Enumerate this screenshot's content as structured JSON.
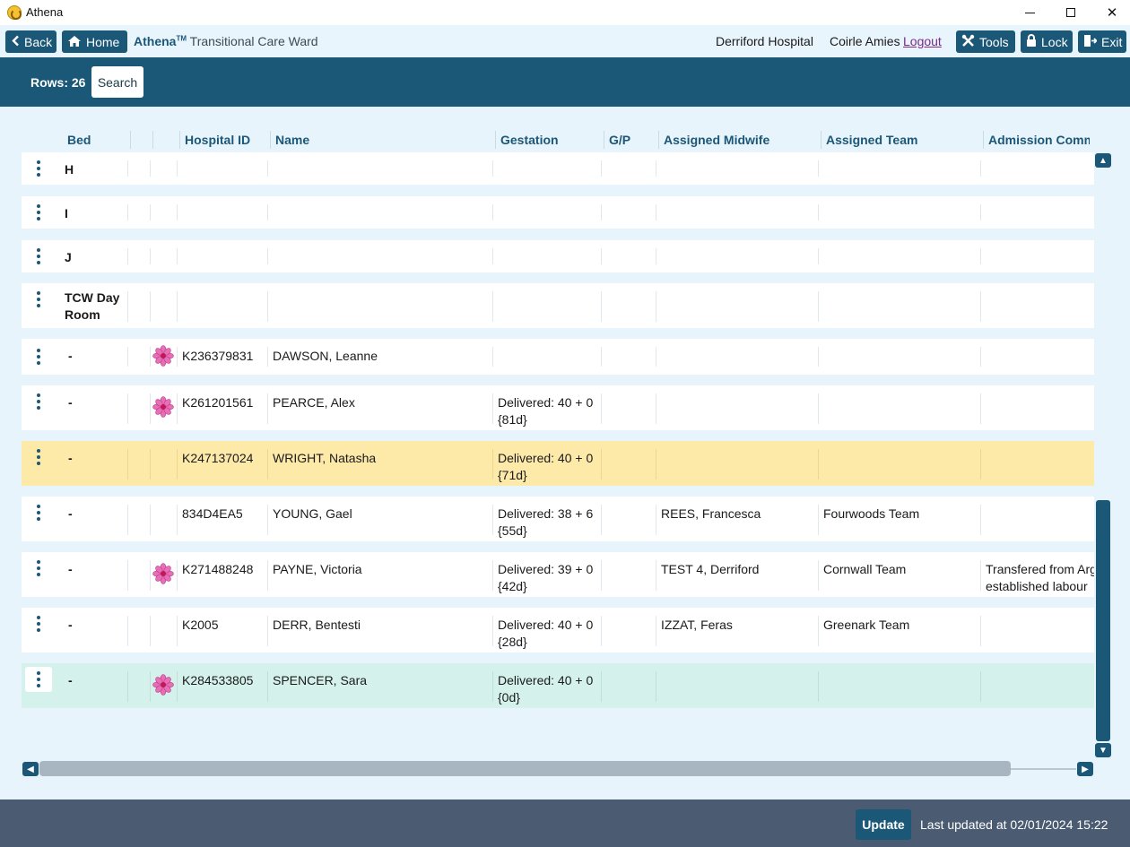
{
  "window": {
    "title": "Athena",
    "minimize": "—",
    "maximize": "☐",
    "close": "✕"
  },
  "header": {
    "back_label": "Back",
    "home_label": "Home",
    "brand_name": "Athena",
    "brand_tm": "TM",
    "ward": "Transitional Care Ward",
    "hospital": "Derriford Hospital",
    "user": "Coirle Amies",
    "logout_label": "Logout",
    "tools_label": "Tools",
    "lock_label": "Lock",
    "exit_label": "Exit"
  },
  "toolbar": {
    "rows_label": "Rows: 26",
    "search_label": "Search"
  },
  "table": {
    "columns": {
      "bed": "Bed",
      "hospital_id": "Hospital ID",
      "name": "Name",
      "gestation": "Gestation",
      "gp": "G/P",
      "midwife": "Assigned Midwife",
      "team": "Assigned Team",
      "comments": "Admission Comm"
    },
    "rows": [
      {
        "bed": "H",
        "hospital_id": "",
        "name": "",
        "gestation": "",
        "gestation_days": "",
        "midwife": "",
        "team": "",
        "comment": "",
        "comment2": "",
        "flower": false,
        "highlight": "none"
      },
      {
        "bed": "I",
        "hospital_id": "",
        "name": "",
        "gestation": "",
        "gestation_days": "",
        "midwife": "",
        "team": "",
        "comment": "",
        "comment2": "",
        "flower": false,
        "highlight": "none"
      },
      {
        "bed": "J",
        "hospital_id": "",
        "name": "",
        "gestation": "",
        "gestation_days": "",
        "midwife": "",
        "team": "",
        "comment": "",
        "comment2": "",
        "flower": false,
        "highlight": "none"
      },
      {
        "bed": "TCW Day Room",
        "hospital_id": "",
        "name": "",
        "gestation": "",
        "gestation_days": "",
        "midwife": "",
        "team": "",
        "comment": "",
        "comment2": "",
        "flower": false,
        "highlight": "none"
      },
      {
        "bed": "-",
        "hospital_id": "K236379831",
        "name": "DAWSON, Leanne",
        "gestation": "",
        "gestation_days": "",
        "midwife": "",
        "team": "",
        "comment": "",
        "comment2": "",
        "flower": true,
        "highlight": "none"
      },
      {
        "bed": "-",
        "hospital_id": "K261201561",
        "name": "PEARCE, Alex",
        "gestation": "Delivered: 40 + 0",
        "gestation_days": "{81d}",
        "midwife": "",
        "team": "",
        "comment": "",
        "comment2": "",
        "flower": true,
        "highlight": "none"
      },
      {
        "bed": "-",
        "hospital_id": "K247137024",
        "name": "WRIGHT, Natasha",
        "gestation": "Delivered: 40 + 0",
        "gestation_days": "{71d}",
        "midwife": "",
        "team": "",
        "comment": "",
        "comment2": "",
        "flower": false,
        "highlight": "yellow"
      },
      {
        "bed": "-",
        "hospital_id": "834D4EA5",
        "name": "YOUNG, Gael",
        "gestation": "Delivered: 38 + 6",
        "gestation_days": "{55d}",
        "midwife": "REES, Francesca",
        "team": "Fourwoods Team",
        "comment": "",
        "comment2": "",
        "flower": false,
        "highlight": "none"
      },
      {
        "bed": "-",
        "hospital_id": "K271488248",
        "name": "PAYNE, Victoria",
        "gestation": "Delivered: 39 + 0",
        "gestation_days": "{42d}",
        "midwife": "TEST 4, Derriford",
        "team": "Cornwall Team",
        "comment": "Transfered from Arg",
        "comment2": "established labour",
        "flower": true,
        "highlight": "none"
      },
      {
        "bed": "-",
        "hospital_id": "K2005",
        "name": "DERR, Bentesti",
        "gestation": "Delivered: 40 + 0",
        "gestation_days": "{28d}",
        "midwife": "IZZAT, Feras",
        "team": "Greenark Team",
        "comment": "",
        "comment2": "",
        "flower": false,
        "highlight": "none"
      },
      {
        "bed": "-",
        "hospital_id": "K284533805",
        "name": "SPENCER, Sara",
        "gestation": "Delivered: 40 + 0",
        "gestation_days": "{0d}",
        "midwife": "",
        "team": "",
        "comment": "",
        "comment2": "",
        "flower": true,
        "highlight": "green"
      }
    ]
  },
  "scroll": {
    "up": "▲",
    "down": "▼",
    "left": "◀",
    "right": "▶"
  },
  "footer": {
    "update_label": "Update",
    "last_updated": "Last updated at 02/01/2024 15:22"
  },
  "colors": {
    "primary": "#1b5777",
    "page_bg": "#e8f4fb",
    "footer_bg": "#4b5c72",
    "highlight_yellow": "#fde9a8",
    "highlight_green": "#d4f2eb"
  }
}
